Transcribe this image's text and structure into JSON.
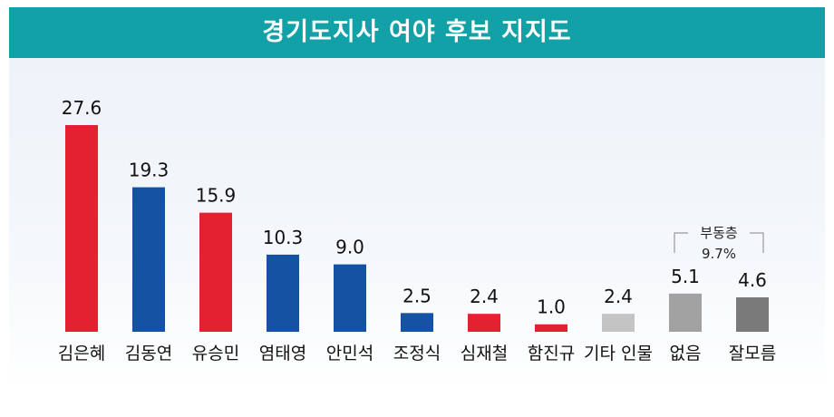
{
  "chart_data": {
    "type": "bar",
    "title": "경기도지사 여야 후보 지지도",
    "categories": [
      "김은혜",
      "김동연",
      "유승민",
      "염태영",
      "안민석",
      "조정식",
      "심재철",
      "함진규",
      "기타 인물",
      "없음",
      "잘모름"
    ],
    "values": [
      27.6,
      19.3,
      15.9,
      10.3,
      9.0,
      2.5,
      2.4,
      1.0,
      2.4,
      5.1,
      4.6
    ],
    "value_labels": [
      "27.6",
      "19.3",
      "15.9",
      "10.3",
      "9.0",
      "2.5",
      "2.4",
      "1.0",
      "2.4",
      "5.1",
      "4.6"
    ],
    "colors": [
      "#e32130",
      "#1452a4",
      "#e32130",
      "#1452a4",
      "#1452a4",
      "#1452a4",
      "#e32130",
      "#e32130",
      "#c4c4c4",
      "#a2a2a2",
      "#7a7a7a"
    ],
    "ylim": [
      0,
      30
    ],
    "grid": false,
    "annotation": {
      "label": "부동층",
      "value": "9.7%",
      "spans": [
        "없음",
        "잘모름"
      ]
    }
  }
}
